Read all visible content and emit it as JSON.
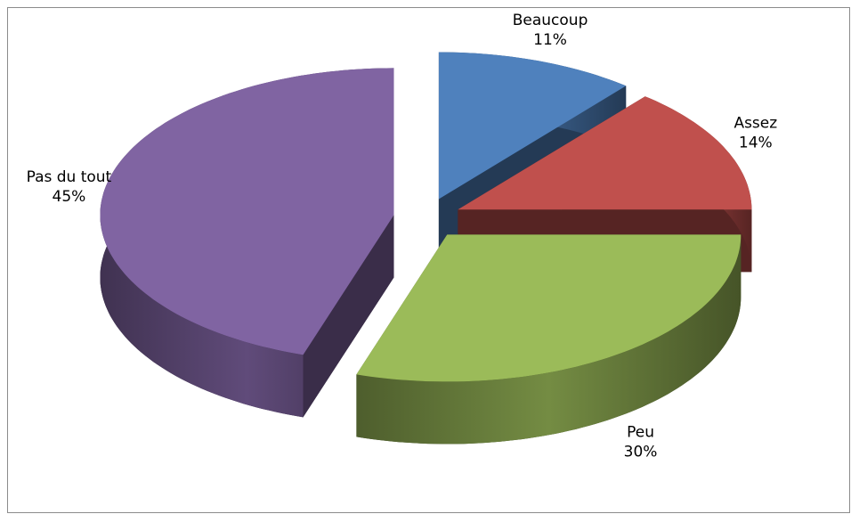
{
  "chart_data": {
    "type": "pie",
    "categories": [
      "Beaucoup",
      "Assez",
      "Peu",
      "Pas du tout"
    ],
    "values": [
      11,
      14,
      30,
      45
    ],
    "value_labels": [
      "11%",
      "14%",
      "30%",
      "45%"
    ],
    "colors": [
      "#4f81bd",
      "#c0504d",
      "#9bbb59",
      "#8064a2"
    ]
  }
}
